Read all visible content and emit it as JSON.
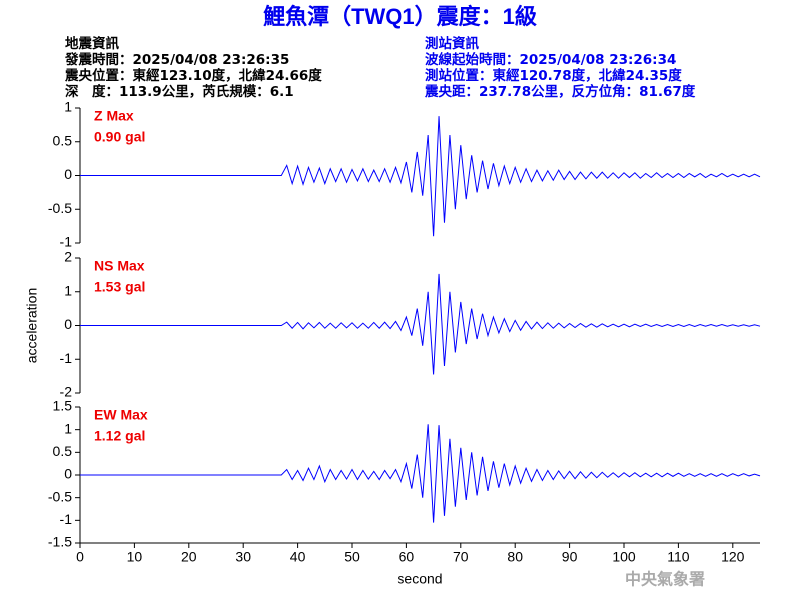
{
  "title": "鯉魚潭（TWQ1）震度：1級",
  "info_left": [
    "地震資訊",
    "發震時間：2025/04/08 23:26:35",
    "震央位置：東經123.10度，北緯24.66度",
    "深　度：113.9公里，芮氏規模：6.1"
  ],
  "info_right": [
    "測站資訊",
    "波線起始時間：2025/04/08 23:26:34",
    "測站位置：東經120.78度，北緯24.35度",
    "震央距：237.78公里，反方位角：81.67度"
  ],
  "watermark": "中央氣象署",
  "chart_data": [
    {
      "type": "line",
      "annotations": [
        "Z Max",
        "0.90 gal"
      ],
      "annotation_color": "#ee0000",
      "color": "#0000ff",
      "xlim": [
        0,
        125
      ],
      "ylim": [
        -1,
        1
      ],
      "yticks": [
        -1,
        -0.5,
        0,
        0.5,
        1
      ],
      "x": [
        0,
        37,
        38,
        39,
        40,
        41,
        42,
        43,
        44,
        45,
        46,
        47,
        48,
        49,
        50,
        51,
        52,
        53,
        54,
        55,
        56,
        57,
        58,
        59,
        60,
        61,
        62,
        63,
        64,
        65,
        66,
        67,
        68,
        69,
        70,
        71,
        72,
        73,
        74,
        75,
        76,
        77,
        78,
        79,
        80,
        81,
        82,
        83,
        84,
        85,
        86,
        87,
        88,
        89,
        90,
        91,
        92,
        93,
        94,
        95,
        96,
        97,
        98,
        99,
        100,
        101,
        102,
        103,
        104,
        105,
        106,
        107,
        108,
        109,
        110,
        111,
        112,
        113,
        114,
        115,
        116,
        117,
        118,
        119,
        120,
        121,
        122,
        123,
        124,
        125
      ],
      "values": [
        0,
        0,
        0.15,
        -0.12,
        0.14,
        -0.13,
        0.12,
        -0.1,
        0.11,
        -0.12,
        0.1,
        -0.09,
        0.1,
        -0.1,
        0.09,
        -0.08,
        0.1,
        -0.09,
        0.08,
        -0.09,
        0.1,
        -0.1,
        0.12,
        -0.11,
        0.2,
        -0.25,
        0.35,
        -0.3,
        0.6,
        -0.9,
        0.88,
        -0.7,
        0.6,
        -0.5,
        0.45,
        -0.35,
        0.3,
        -0.25,
        0.22,
        -0.2,
        0.18,
        -0.15,
        0.14,
        -0.12,
        0.12,
        -0.1,
        0.1,
        -0.09,
        0.08,
        -0.08,
        0.07,
        -0.07,
        0.08,
        -0.06,
        0.06,
        -0.06,
        0.05,
        -0.05,
        0.05,
        -0.04,
        0.05,
        -0.04,
        0.04,
        -0.04,
        0.04,
        -0.03,
        0.04,
        -0.04,
        0.03,
        -0.03,
        0.04,
        -0.03,
        0.03,
        -0.03,
        0.03,
        -0.03,
        0.03,
        -0.02,
        0.03,
        -0.03,
        0.02,
        -0.02,
        0.03,
        -0.02,
        0.02,
        -0.02,
        0.02,
        -0.02,
        0.02,
        -0.02
      ]
    },
    {
      "type": "line",
      "ylabel": "acceleration",
      "annotations": [
        "NS Max",
        "1.53 gal"
      ],
      "annotation_color": "#ee0000",
      "color": "#0000ff",
      "xlim": [
        0,
        125
      ],
      "ylim": [
        -2,
        2
      ],
      "yticks": [
        -2,
        -1,
        0,
        1,
        2
      ],
      "x": [
        0,
        37,
        38,
        39,
        40,
        41,
        42,
        43,
        44,
        45,
        46,
        47,
        48,
        49,
        50,
        51,
        52,
        53,
        54,
        55,
        56,
        57,
        58,
        59,
        60,
        61,
        62,
        63,
        64,
        65,
        66,
        67,
        68,
        69,
        70,
        71,
        72,
        73,
        74,
        75,
        76,
        77,
        78,
        79,
        80,
        81,
        82,
        83,
        84,
        85,
        86,
        87,
        88,
        89,
        90,
        91,
        92,
        93,
        94,
        95,
        96,
        97,
        98,
        99,
        100,
        101,
        102,
        103,
        104,
        105,
        106,
        107,
        108,
        109,
        110,
        111,
        112,
        113,
        114,
        115,
        116,
        117,
        118,
        119,
        120,
        121,
        122,
        123,
        124,
        125
      ],
      "values": [
        0,
        0,
        0.1,
        -0.08,
        0.09,
        -0.1,
        0.08,
        -0.07,
        0.09,
        -0.08,
        0.07,
        -0.08,
        0.08,
        -0.07,
        0.08,
        -0.08,
        0.07,
        -0.08,
        0.09,
        -0.08,
        0.1,
        -0.09,
        0.12,
        -0.15,
        0.25,
        -0.3,
        0.5,
        -0.6,
        1.0,
        -1.45,
        1.53,
        -1.2,
        1.0,
        -0.8,
        0.7,
        -0.55,
        0.5,
        -0.4,
        0.35,
        -0.3,
        0.25,
        -0.22,
        0.2,
        -0.18,
        0.15,
        -0.14,
        0.12,
        -0.1,
        0.1,
        -0.09,
        0.08,
        -0.08,
        0.07,
        -0.07,
        0.06,
        -0.06,
        0.06,
        -0.05,
        0.05,
        -0.05,
        0.05,
        -0.04,
        0.04,
        -0.04,
        0.04,
        -0.04,
        0.04,
        -0.03,
        0.04,
        -0.03,
        0.03,
        -0.03,
        0.03,
        -0.03,
        0.03,
        -0.03,
        0.03,
        -0.03,
        0.03,
        -0.02,
        0.03,
        -0.02,
        0.03,
        -0.02,
        0.02,
        -0.02,
        0.02,
        -0.02,
        0.02,
        -0.02
      ]
    },
    {
      "type": "line",
      "xlabel": "second",
      "annotations": [
        "EW Max",
        "1.12 gal"
      ],
      "annotation_color": "#ee0000",
      "color": "#0000ff",
      "xlim": [
        0,
        125
      ],
      "xticks": [
        0,
        10,
        20,
        30,
        40,
        50,
        60,
        70,
        80,
        90,
        100,
        110,
        120
      ],
      "ylim": [
        -1.5,
        1.5
      ],
      "yticks": [
        -1.5,
        -1,
        -0.5,
        0,
        0.5,
        1,
        1.5
      ],
      "x": [
        0,
        37,
        38,
        39,
        40,
        41,
        42,
        43,
        44,
        45,
        46,
        47,
        48,
        49,
        50,
        51,
        52,
        53,
        54,
        55,
        56,
        57,
        58,
        59,
        60,
        61,
        62,
        63,
        64,
        65,
        66,
        67,
        68,
        69,
        70,
        71,
        72,
        73,
        74,
        75,
        76,
        77,
        78,
        79,
        80,
        81,
        82,
        83,
        84,
        85,
        86,
        87,
        88,
        89,
        90,
        91,
        92,
        93,
        94,
        95,
        96,
        97,
        98,
        99,
        100,
        101,
        102,
        103,
        104,
        105,
        106,
        107,
        108,
        109,
        110,
        111,
        112,
        113,
        114,
        115,
        116,
        117,
        118,
        119,
        120,
        121,
        122,
        123,
        124,
        125
      ],
      "values": [
        0,
        0,
        0.12,
        -0.1,
        0.1,
        -0.12,
        0.15,
        -0.1,
        0.2,
        -0.15,
        0.12,
        -0.1,
        0.1,
        -0.09,
        0.12,
        -0.1,
        0.1,
        -0.09,
        0.08,
        -0.1,
        0.1,
        -0.08,
        0.12,
        -0.15,
        0.25,
        -0.3,
        0.45,
        -0.5,
        1.12,
        -1.05,
        1.1,
        -0.9,
        0.8,
        -0.7,
        0.6,
        -0.55,
        0.5,
        -0.45,
        0.4,
        -0.35,
        0.3,
        -0.28,
        0.25,
        -0.22,
        0.2,
        -0.18,
        0.15,
        -0.14,
        0.12,
        -0.12,
        0.1,
        -0.1,
        0.09,
        -0.08,
        0.08,
        -0.08,
        0.07,
        -0.07,
        0.06,
        -0.06,
        0.06,
        -0.05,
        0.05,
        -0.05,
        0.05,
        -0.04,
        0.05,
        -0.04,
        0.04,
        -0.04,
        0.04,
        -0.04,
        0.04,
        -0.03,
        0.04,
        -0.03,
        0.03,
        -0.03,
        0.03,
        -0.03,
        0.03,
        -0.03,
        0.03,
        -0.03,
        0.03,
        -0.02,
        0.03,
        -0.02,
        0.02,
        -0.02
      ]
    }
  ]
}
